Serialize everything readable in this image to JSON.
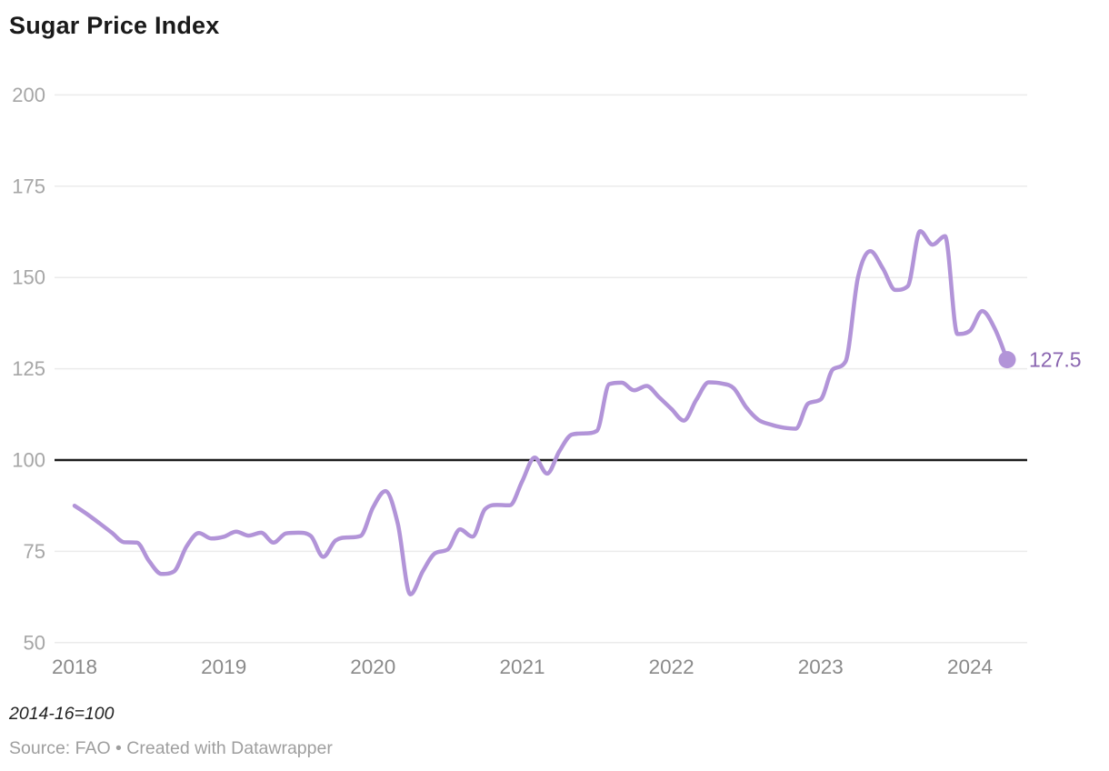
{
  "header": {
    "title": "Sugar Price Index"
  },
  "footer": {
    "note": "2014-16=100",
    "source": "Source: FAO • Created with Datawrapper"
  },
  "chart_data": {
    "type": "line",
    "title": "Sugar Price Index",
    "xlabel": "",
    "ylabel": "",
    "unit_note": "2014-16=100",
    "source": "Source: FAO • Created with Datawrapper",
    "legend_position": "none",
    "grid": "horizontal",
    "ylim": [
      50,
      200
    ],
    "yticks": [
      200,
      175,
      150,
      125,
      100,
      75,
      50
    ],
    "baseline": 100,
    "xticks_years": [
      "2018",
      "2019",
      "2020",
      "2021",
      "2022",
      "2023",
      "2024"
    ],
    "end_label": "127.5",
    "end_value": 127.5,
    "colors": {
      "line": "#b294d8",
      "dot": "#b294d8",
      "end_label_text": "#8a65b0",
      "baseline": "#1d1d1d",
      "grid": "#ebebeb",
      "ytick_text": "#a6a6a6",
      "xtick_text": "#8a8a8a"
    },
    "series": [
      {
        "name": "Sugar Price Index",
        "months": [
          "2018-01",
          "2018-02",
          "2018-03",
          "2018-04",
          "2018-05",
          "2018-06",
          "2018-07",
          "2018-08",
          "2018-09",
          "2018-10",
          "2018-11",
          "2018-12",
          "2019-01",
          "2019-02",
          "2019-03",
          "2019-04",
          "2019-05",
          "2019-06",
          "2019-07",
          "2019-08",
          "2019-09",
          "2019-10",
          "2019-11",
          "2019-12",
          "2020-01",
          "2020-02",
          "2020-03",
          "2020-04",
          "2020-05",
          "2020-06",
          "2020-07",
          "2020-08",
          "2020-09",
          "2020-10",
          "2020-11",
          "2020-12",
          "2021-01",
          "2021-02",
          "2021-03",
          "2021-04",
          "2021-05",
          "2021-06",
          "2021-07",
          "2021-08",
          "2021-09",
          "2021-10",
          "2021-11",
          "2021-12",
          "2022-01",
          "2022-02",
          "2022-03",
          "2022-04",
          "2022-05",
          "2022-06",
          "2022-07",
          "2022-08",
          "2022-09",
          "2022-10",
          "2022-11",
          "2022-12",
          "2023-01",
          "2023-02",
          "2023-03",
          "2023-04",
          "2023-05",
          "2023-06",
          "2023-07",
          "2023-08",
          "2023-09",
          "2023-10",
          "2023-11",
          "2023-12",
          "2024-01",
          "2024-02",
          "2024-03",
          "2024-04"
        ],
        "values": [
          87.5,
          85.2,
          82.7,
          80.1,
          77.5,
          77.4,
          72.3,
          68.8,
          69.5,
          76.3,
          80.0,
          78.5,
          79.0,
          80.4,
          79.3,
          80.1,
          77.4,
          79.9,
          80.1,
          79.2,
          73.5,
          78.0,
          78.8,
          79.2,
          87.0,
          91.5,
          82.5,
          63.2,
          69.5,
          74.5,
          75.5,
          81.0,
          79.0,
          86.5,
          87.7,
          87.6,
          94.2,
          100.7,
          96.3,
          102.5,
          107.0,
          107.3,
          108.0,
          120.8,
          121.2,
          119.1,
          120.3,
          117.2,
          114.0,
          110.8,
          116.5,
          121.3,
          121.0,
          119.7,
          114.5,
          111.0,
          109.7,
          108.9,
          108.6,
          115.5,
          116.6,
          124.9,
          127.0,
          150.0,
          157.2,
          152.5,
          146.6,
          147.6,
          162.7,
          159.0,
          161.3,
          134.5,
          135.4,
          140.8,
          136.0,
          127.5
        ]
      }
    ]
  }
}
